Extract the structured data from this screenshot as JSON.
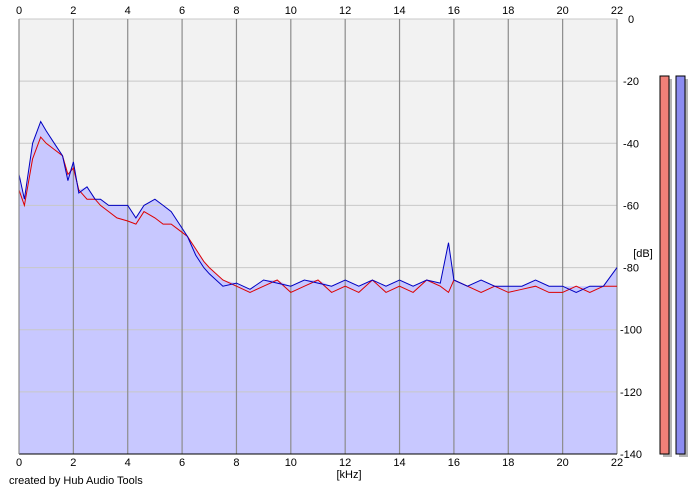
{
  "credit": "created by Hub Audio Tools",
  "colors": {
    "background": "#ffffff",
    "plot_background": "#f2f2f2",
    "grid_major": "#8c8c8c",
    "grid_minor": "#c8c8c8",
    "fill": "#c8c8ff",
    "channel_left_line": "#dd0000",
    "channel_right_line": "#0000c0",
    "meter_left": "#f08078",
    "meter_right": "#8c8cf0",
    "meter_shadow": "#b4b4b4"
  },
  "chart_data": {
    "type": "area",
    "xlabel": "[kHz]",
    "ylabel": "[dB]",
    "xlim": [
      0,
      22
    ],
    "ylim": [
      -140,
      0
    ],
    "x_ticks": [
      "0",
      "2",
      "4",
      "6",
      "8",
      "10",
      "12",
      "14",
      "16",
      "18",
      "20",
      "22"
    ],
    "y_ticks": [
      "0",
      "-20",
      "-40",
      "-60",
      "-80",
      "-100",
      "-120",
      "-140"
    ],
    "grid": true,
    "series": [
      {
        "color": "#dd0000",
        "x": [
          0,
          0.2,
          0.5,
          0.8,
          1,
          1.3,
          1.6,
          1.8,
          2,
          2.2,
          2.5,
          2.8,
          3,
          3.3,
          3.6,
          4,
          4.3,
          4.6,
          5,
          5.3,
          5.6,
          5.9,
          6.2,
          6.5,
          6.8,
          7,
          7.5,
          8,
          8.5,
          9,
          9.5,
          10,
          10.5,
          11,
          11.5,
          12,
          12.5,
          13,
          13.5,
          14,
          14.5,
          15,
          15.5,
          15.8,
          16,
          16.5,
          17,
          17.5,
          18,
          18.5,
          19,
          19.5,
          20,
          20.5,
          21,
          21.5,
          22
        ],
        "y": [
          -55,
          -60,
          -45,
          -38,
          -40,
          -42,
          -44,
          -50,
          -48,
          -55,
          -58,
          -58,
          -60,
          -62,
          -64,
          -65,
          -66,
          -62,
          -64,
          -66,
          -66,
          -68,
          -70,
          -74,
          -78,
          -80,
          -84,
          -86,
          -88,
          -86,
          -84,
          -88,
          -86,
          -84,
          -88,
          -86,
          -88,
          -84,
          -88,
          -86,
          -88,
          -84,
          -86,
          -88,
          -84,
          -86,
          -88,
          -86,
          -88,
          -87,
          -86,
          -88,
          -88,
          -86,
          -88,
          -86,
          -86
        ]
      },
      {
        "color": "#0000c0",
        "x": [
          0,
          0.2,
          0.5,
          0.8,
          1,
          1.3,
          1.6,
          1.8,
          2,
          2.2,
          2.5,
          2.8,
          3,
          3.3,
          3.6,
          4,
          4.3,
          4.6,
          5,
          5.3,
          5.6,
          5.9,
          6.2,
          6.5,
          6.8,
          7,
          7.5,
          8,
          8.5,
          9,
          9.5,
          10,
          10.5,
          11,
          11.5,
          12,
          12.5,
          13,
          13.5,
          14,
          14.5,
          15,
          15.5,
          15.8,
          16,
          16.5,
          17,
          17.5,
          18,
          18.5,
          19,
          19.5,
          20,
          20.5,
          21,
          21.5,
          22
        ],
        "y": [
          -50,
          -58,
          -40,
          -33,
          -36,
          -40,
          -44,
          -52,
          -46,
          -56,
          -54,
          -58,
          -58,
          -60,
          -60,
          -60,
          -64,
          -60,
          -58,
          -60,
          -62,
          -66,
          -70,
          -76,
          -80,
          -82,
          -86,
          -85,
          -87,
          -84,
          -85,
          -86,
          -84,
          -85,
          -86,
          -84,
          -86,
          -84,
          -86,
          -84,
          -86,
          -84,
          -85,
          -72,
          -84,
          -86,
          -84,
          -86,
          -86,
          -86,
          -84,
          -86,
          -86,
          -88,
          -86,
          -86,
          -80
        ]
      }
    ],
    "meters": [
      {
        "label": "",
        "level": 0.87
      },
      {
        "label": "",
        "level": 0.87
      }
    ]
  }
}
